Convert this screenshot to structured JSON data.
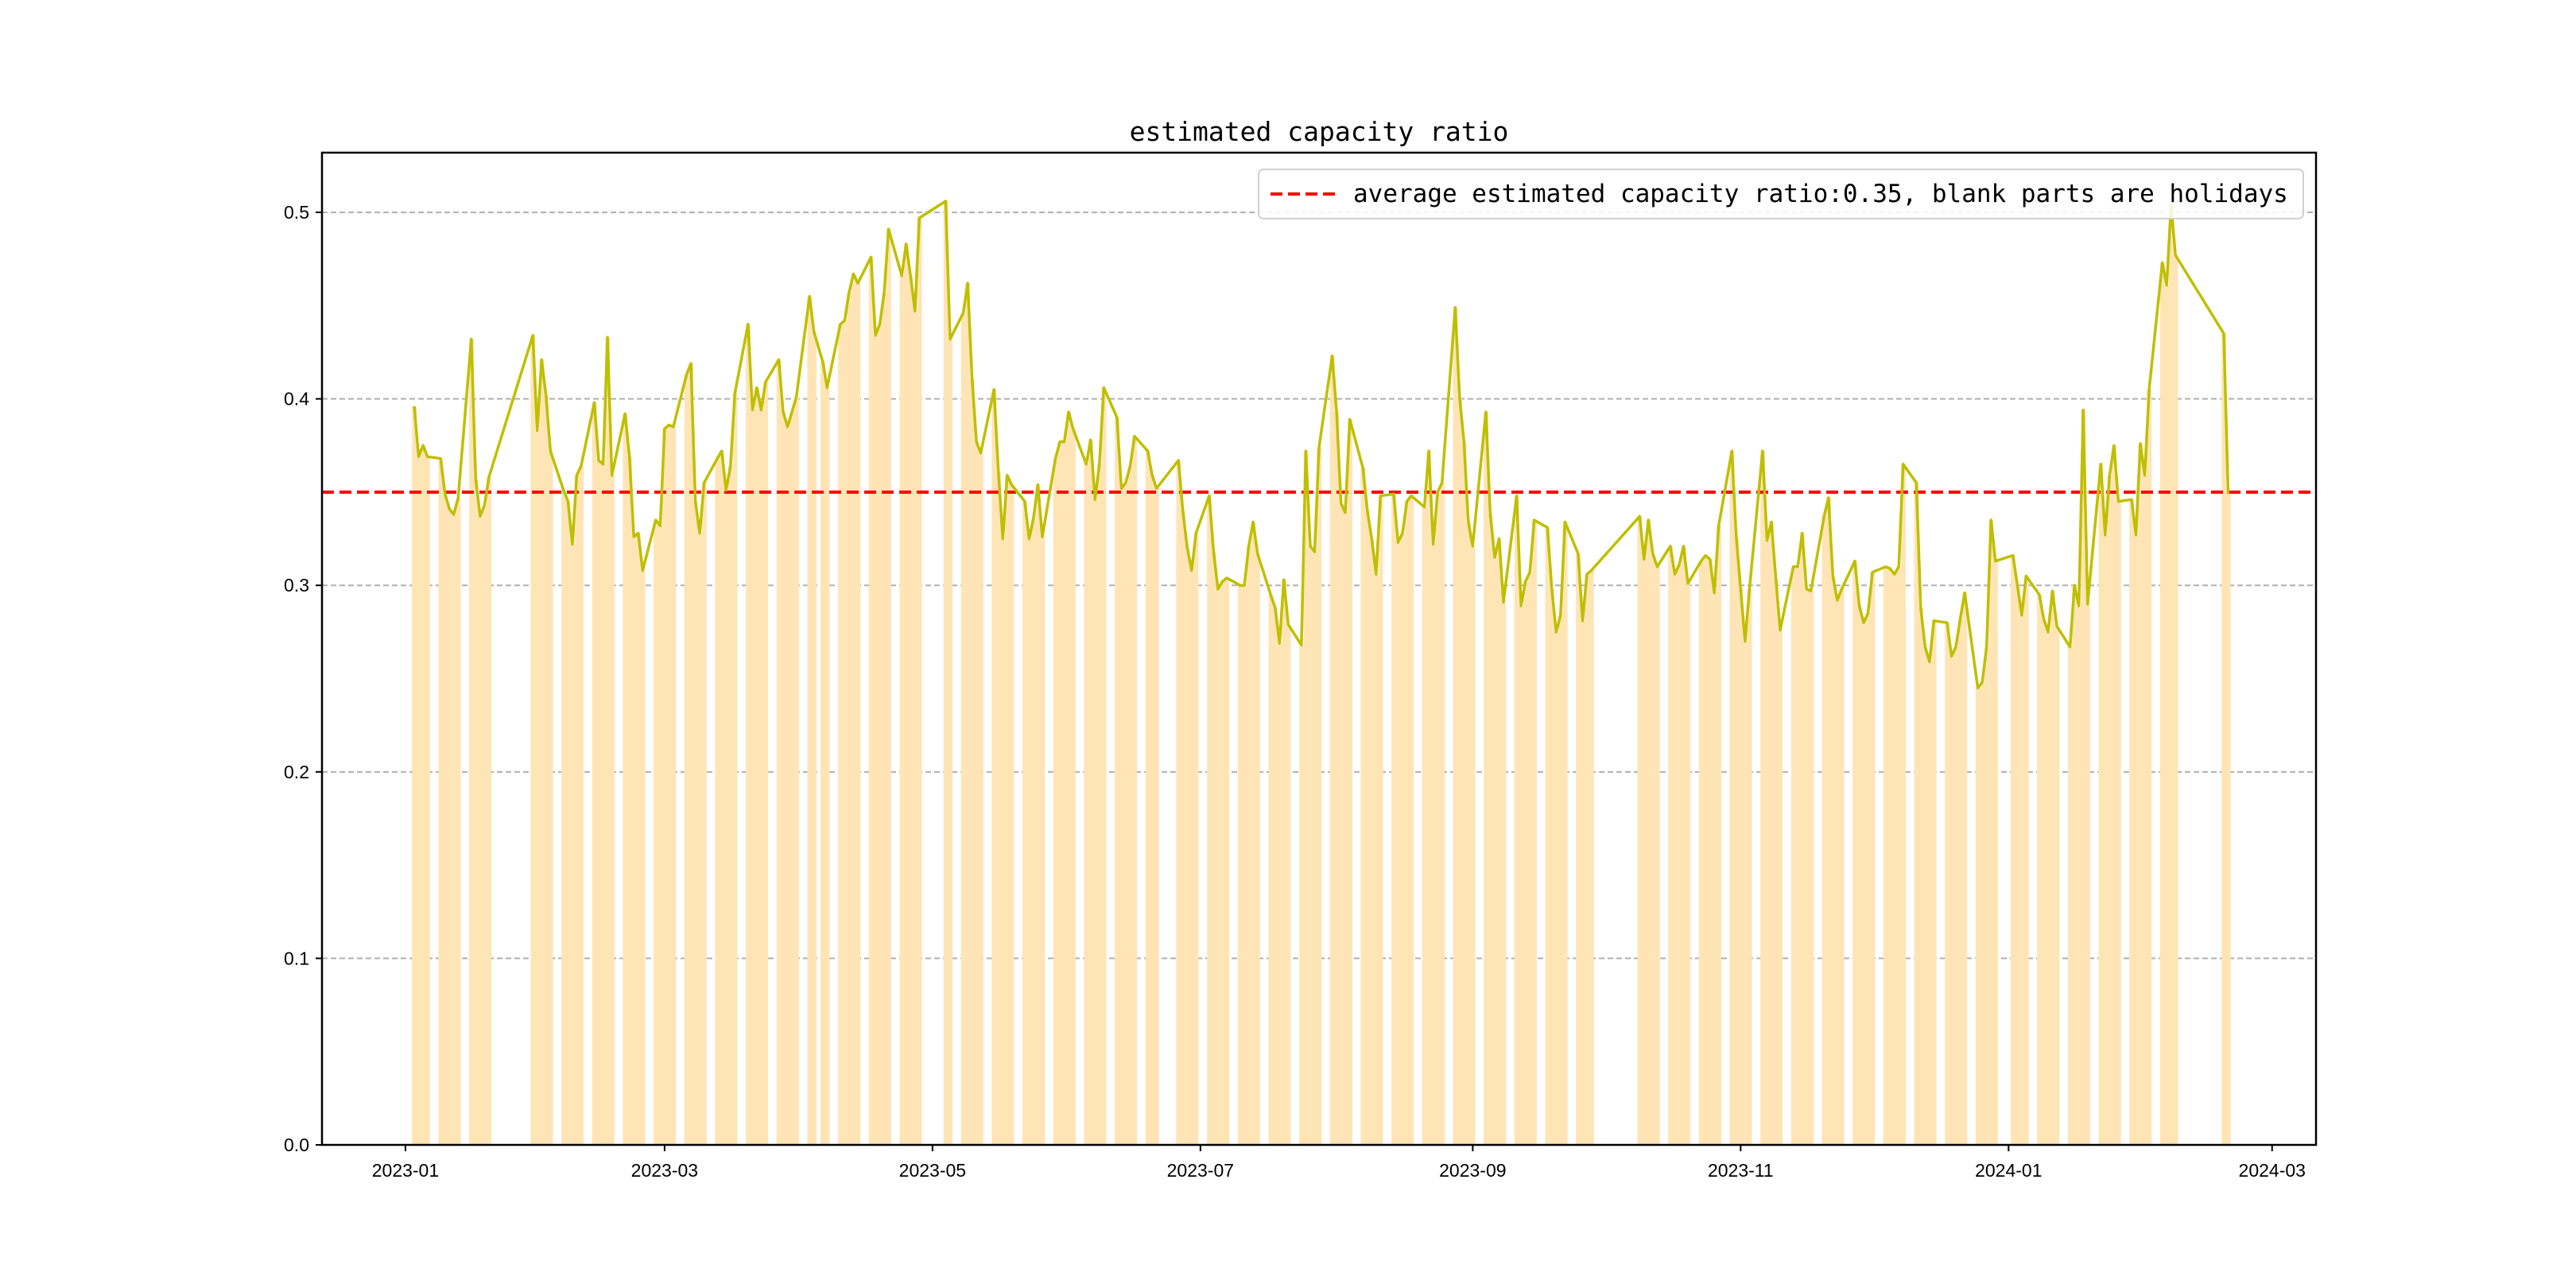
{
  "chart_data": {
    "type": "bar+line",
    "title": "estimated capacity ratio",
    "xlabel": "",
    "ylabel": "",
    "xlim": [
      "2022-12-13",
      "2024-03-11"
    ],
    "ylim": [
      0,
      0.532
    ],
    "grid": "horizontal dashed",
    "x_ticks": [
      "2023-01",
      "2023-03",
      "2023-05",
      "2023-07",
      "2023-09",
      "2023-11",
      "2024-01",
      "2024-03"
    ],
    "y_ticks": [
      "0.0",
      "0.1",
      "0.2",
      "0.3",
      "0.4",
      "0.5"
    ],
    "average": 0.35,
    "legend": {
      "placement": "top-right",
      "label": "average estimated capacity ratio:0.35, blank parts are holidays"
    },
    "colors": {
      "bar": "#FFE4B5",
      "line": "#BFBF00",
      "average": "#FF0000",
      "grid": "#B0B0B0"
    },
    "series_note": "weekly groups of consecutive trading days; each value is drawn as both a bar and a line vertex",
    "weeks": [
      [
        "2023-01-03",
        [
          0.396,
          0.369,
          0.375,
          0.369
        ]
      ],
      [
        "2023-01-09",
        [
          0.368,
          0.349,
          0.341,
          0.338,
          0.347
        ]
      ],
      [
        "2023-01-16",
        [
          0.432,
          0.357,
          0.337,
          0.343,
          0.358
        ]
      ],
      [
        "2023-01-30",
        [
          0.434,
          0.383,
          0.421,
          0.402,
          0.372
        ]
      ],
      [
        "2023-02-06",
        [
          0.351,
          0.345,
          0.322,
          0.359,
          0.364
        ]
      ],
      [
        "2023-02-13",
        [
          0.398,
          0.367,
          0.365,
          0.433,
          0.359
        ]
      ],
      [
        "2023-02-20",
        [
          0.392,
          0.369,
          0.326,
          0.328,
          0.308
        ]
      ],
      [
        "2023-02-27",
        [
          0.335,
          0.332,
          0.384,
          0.386,
          0.385
        ]
      ],
      [
        "2023-03-06",
        [
          0.413,
          0.419,
          0.345,
          0.328,
          0.355
        ]
      ],
      [
        "2023-03-13",
        [
          0.368,
          0.372,
          0.351,
          0.364,
          0.403
        ]
      ],
      [
        "2023-03-20",
        [
          0.44,
          0.394,
          0.406,
          0.394,
          0.409
        ]
      ],
      [
        "2023-03-27",
        [
          0.421,
          0.393,
          0.385,
          0.393,
          0.401
        ]
      ],
      [
        "2023-04-03",
        [
          0.455,
          0.436
        ]
      ],
      [
        "2023-04-06",
        [
          0.42,
          0.406
        ]
      ],
      [
        "2023-04-10",
        [
          0.44,
          0.442,
          0.457,
          0.467,
          0.462
        ]
      ],
      [
        "2023-04-17",
        [
          0.476,
          0.434,
          0.44,
          0.457,
          0.491
        ]
      ],
      [
        "2023-04-24",
        [
          0.466,
          0.483,
          0.466,
          0.447,
          0.497
        ]
      ],
      [
        "2023-05-04",
        [
          0.506,
          0.432
        ]
      ],
      [
        "2023-05-08",
        [
          0.446,
          0.462,
          0.411,
          0.377,
          0.371
        ]
      ],
      [
        "2023-05-15",
        [
          0.405,
          0.361,
          0.325,
          0.359,
          0.354
        ]
      ],
      [
        "2023-05-22",
        [
          0.345,
          0.325,
          0.336,
          0.354,
          0.326
        ]
      ],
      [
        "2023-05-29",
        [
          0.368,
          0.377,
          0.377,
          0.393,
          0.384
        ]
      ],
      [
        "2023-06-05",
        [
          0.365,
          0.378,
          0.346,
          0.365,
          0.406
        ]
      ],
      [
        "2023-06-12",
        [
          0.39,
          0.352,
          0.355,
          0.364,
          0.38
        ]
      ],
      [
        "2023-06-19",
        [
          0.372,
          0.359,
          0.352
        ]
      ],
      [
        "2023-06-26",
        [
          0.367,
          0.34,
          0.32,
          0.308,
          0.328
        ]
      ],
      [
        "2023-07-03",
        [
          0.348,
          0.318,
          0.298,
          0.302,
          0.304
        ]
      ],
      [
        "2023-07-10",
        [
          0.3,
          0.3,
          0.321,
          0.334,
          0.317
        ]
      ],
      [
        "2023-07-17",
        [
          0.295,
          0.288,
          0.269,
          0.303,
          0.279
        ]
      ],
      [
        "2023-07-24",
        [
          0.268,
          0.372,
          0.321,
          0.318,
          0.374
        ]
      ],
      [
        "2023-07-31",
        [
          0.423,
          0.393,
          0.344,
          0.339,
          0.389
        ]
      ],
      [
        "2023-08-07",
        [
          0.363,
          0.34,
          0.325,
          0.306,
          0.348
        ]
      ],
      [
        "2023-08-14",
        [
          0.349,
          0.323,
          0.328,
          0.345,
          0.348
        ]
      ],
      [
        "2023-08-21",
        [
          0.342,
          0.372,
          0.322,
          0.35,
          0.355
        ]
      ],
      [
        "2023-08-28",
        [
          0.449,
          0.401,
          0.377,
          0.334,
          0.321
        ]
      ],
      [
        "2023-09-04",
        [
          0.393,
          0.338,
          0.315,
          0.325,
          0.291
        ]
      ],
      [
        "2023-09-11",
        [
          0.348,
          0.289,
          0.302,
          0.307,
          0.335
        ]
      ],
      [
        "2023-09-18",
        [
          0.331,
          0.298,
          0.275,
          0.284,
          0.334
        ]
      ],
      [
        "2023-09-25",
        [
          0.317,
          0.281,
          0.306,
          0.308
        ]
      ],
      [
        "2023-10-09",
        [
          0.337,
          0.314,
          0.335,
          0.317,
          0.31
        ]
      ],
      [
        "2023-10-16",
        [
          0.321,
          0.306,
          0.311,
          0.321,
          0.301
        ]
      ],
      [
        "2023-10-23",
        [
          0.313,
          0.316,
          0.314,
          0.296,
          0.332
        ]
      ],
      [
        "2023-10-30",
        [
          0.372,
          0.326,
          0.298,
          0.27,
          0.298
        ]
      ],
      [
        "2023-11-06",
        [
          0.372,
          0.324,
          0.334,
          0.304,
          0.276
        ]
      ],
      [
        "2023-11-13",
        [
          0.31,
          0.31,
          0.328,
          0.298,
          0.297
        ]
      ],
      [
        "2023-11-20",
        [
          0.337,
          0.347,
          0.305,
          0.292,
          0.298
        ]
      ],
      [
        "2023-11-27",
        [
          0.313,
          0.289,
          0.28,
          0.285,
          0.307
        ]
      ],
      [
        "2023-12-04",
        [
          0.31,
          0.309,
          0.306,
          0.31,
          0.365
        ]
      ],
      [
        "2023-12-11",
        [
          0.355,
          0.288,
          0.267,
          0.259,
          0.281
        ]
      ],
      [
        "2023-12-18",
        [
          0.28,
          0.262,
          0.267,
          0.282,
          0.296
        ]
      ],
      [
        "2023-12-25",
        [
          0.245,
          0.248,
          0.267,
          0.335,
          0.313
        ]
      ],
      [
        "2024-01-02",
        [
          0.316,
          0.3,
          0.284,
          0.305
        ]
      ],
      [
        "2024-01-08",
        [
          0.295,
          0.282,
          0.275,
          0.297,
          0.278
        ]
      ],
      [
        "2024-01-15",
        [
          0.267,
          0.3,
          0.289,
          0.394,
          0.29
        ]
      ],
      [
        "2024-01-22",
        [
          0.365,
          0.327,
          0.359,
          0.375,
          0.345
        ]
      ],
      [
        "2024-01-29",
        [
          0.346,
          0.327,
          0.376,
          0.359,
          0.405
        ]
      ],
      [
        "2024-02-05",
        [
          0.473,
          0.461,
          0.504,
          0.477
        ]
      ],
      [
        "2024-02-19",
        [
          0.435,
          0.349
        ]
      ]
    ]
  }
}
